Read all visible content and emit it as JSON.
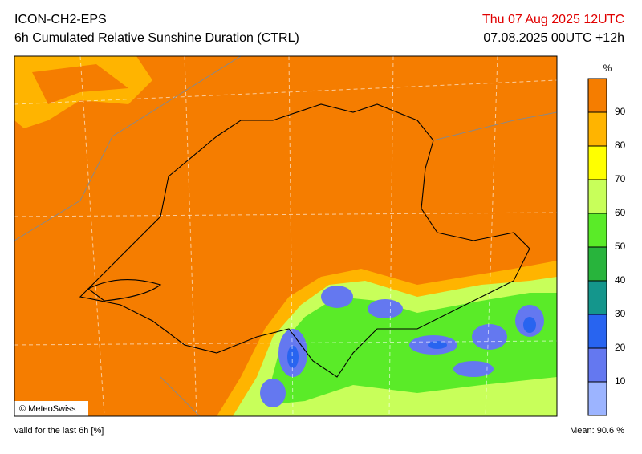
{
  "header": {
    "model": "ICON-CH2-EPS",
    "title": "6h Cumulated Relative Sunshine Duration (CTRL)",
    "valid_time": "Thu 07 Aug 2025 12UTC",
    "run": "07.08.2025 00UTC +12h"
  },
  "map": {
    "credit": "© MeteoSwiss"
  },
  "colorbar": {
    "unit": "%",
    "lim": [
      0,
      100
    ],
    "ticks": [
      10,
      20,
      30,
      40,
      50,
      60,
      70,
      80,
      90
    ],
    "colors": [
      "#9cb4ff",
      "#6478f0",
      "#2864f0",
      "#14968c",
      "#28b43c",
      "#5aeb28",
      "#c8ff5a",
      "#ffff00",
      "#ffb400",
      "#f57d00"
    ]
  },
  "footer": {
    "note": "valid for the last 6h [%]",
    "mean": "Mean:  90.6 %"
  }
}
